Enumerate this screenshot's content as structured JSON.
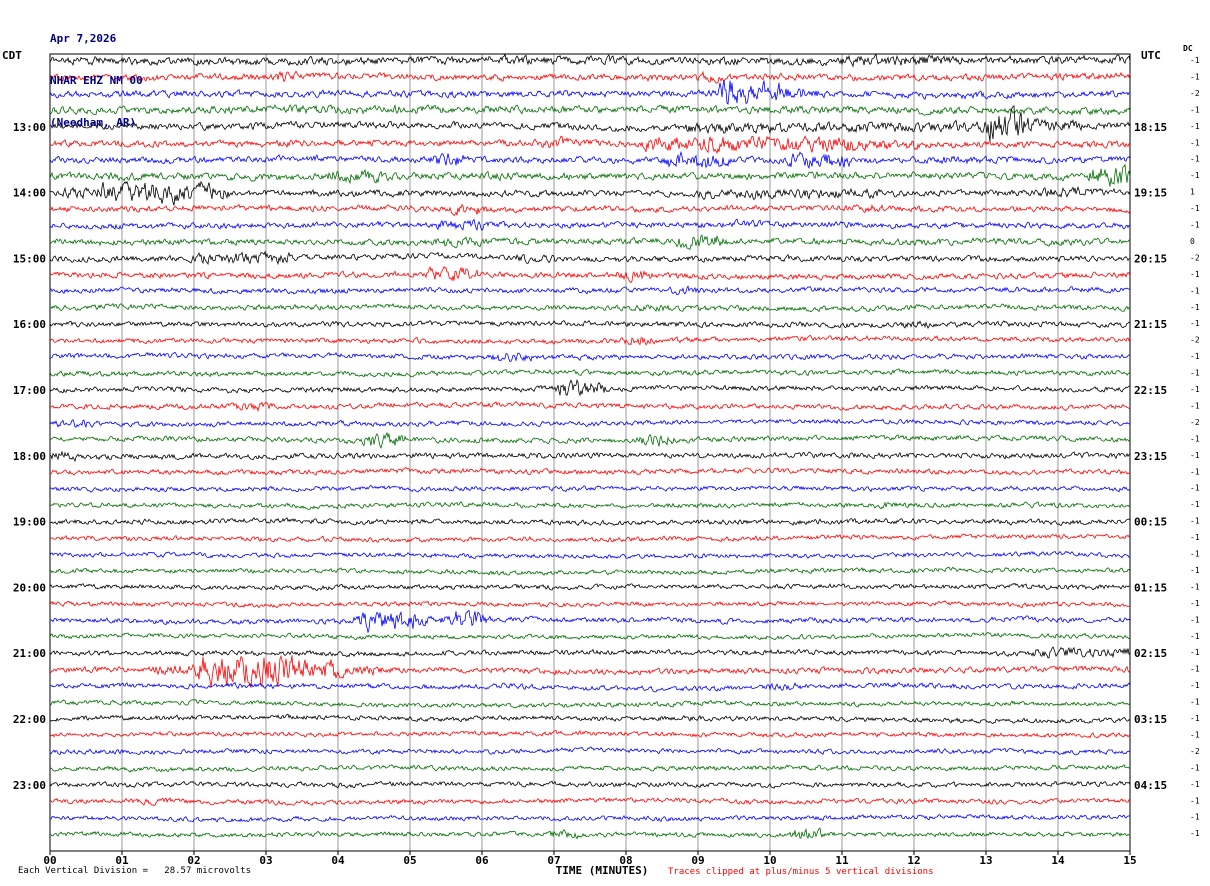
{
  "header": {
    "date": "Apr 7,2026",
    "station": "NHAR EHZ NM 00",
    "location": "(Needham, AR)"
  },
  "axes": {
    "left_timezone": "CDT",
    "right_timezone": "UTC",
    "dc_label": "DC",
    "x_title": "TIME (MINUTES)",
    "minute_labels": [
      "00",
      "01",
      "02",
      "03",
      "04",
      "05",
      "06",
      "07",
      "08",
      "09",
      "10",
      "11",
      "12",
      "13",
      "14",
      "15"
    ]
  },
  "footer": {
    "scale_note": "Each Vertical Division =   28.57 microvolts",
    "clip_note": "Traces clipped at plus/minus 5 vertical divisions"
  },
  "colors": {
    "trace_cycle": [
      "#000000",
      "#ff0000",
      "#0000ff",
      "#006e00"
    ],
    "grid": "#9a9a9a",
    "title": "#000080",
    "clip_note_color": "#ff0000"
  },
  "chart_data": {
    "type": "line",
    "subtype": "seismogram-helicorder",
    "x_range_minutes": [
      0,
      15
    ],
    "minutes_per_row": 15,
    "clip_divisions": 5,
    "microvolts_per_division": 28.57,
    "row_color_cycle": [
      "black",
      "red",
      "blue",
      "green"
    ],
    "rows": [
      {
        "left": "",
        "right": "",
        "dc": -1,
        "amp": 3.2,
        "events": [
          [
            11.0,
            12.5,
            4.5
          ],
          [
            6.3,
            6.6,
            4
          ]
        ]
      },
      {
        "left": "",
        "right": "",
        "dc": -1,
        "amp": 2.6,
        "events": [
          [
            3.1,
            3.4,
            4
          ],
          [
            9.0,
            9.3,
            4
          ]
        ]
      },
      {
        "left": "",
        "right": "",
        "dc": -2,
        "amp": 2.6,
        "events": [
          [
            9.35,
            9.6,
            13
          ],
          [
            9.9,
            10.15,
            9
          ],
          [
            10.4,
            10.6,
            5
          ]
        ]
      },
      {
        "left": "",
        "right": "",
        "dc": -1,
        "amp": 2.8,
        "events": [
          [
            2.5,
            5.5,
            3.5
          ]
        ]
      },
      {
        "left": "13:00",
        "right": "18:15",
        "dc": -1,
        "amp": 2.6,
        "events": [
          [
            8.8,
            12.9,
            4.2
          ],
          [
            13.05,
            13.5,
            12
          ],
          [
            13.5,
            14.2,
            5
          ]
        ]
      },
      {
        "left": "",
        "right": "",
        "dc": -1,
        "amp": 2.6,
        "events": [
          [
            6.8,
            7.1,
            4.5
          ],
          [
            8.3,
            11.2,
            6.5
          ],
          [
            11.2,
            12.0,
            4
          ]
        ]
      },
      {
        "left": "",
        "right": "",
        "dc": -1,
        "amp": 2.5,
        "events": [
          [
            5.3,
            5.65,
            6
          ],
          [
            8.6,
            9.3,
            6.5
          ],
          [
            10.3,
            11.0,
            6.5
          ],
          [
            12.4,
            12.7,
            4
          ]
        ]
      },
      {
        "left": "",
        "right": "",
        "dc": -1,
        "amp": 2.8,
        "events": [
          [
            3.9,
            4.6,
            5
          ],
          [
            6.0,
            6.4,
            4
          ],
          [
            14.5,
            15,
            9
          ]
        ]
      },
      {
        "left": "14:00",
        "right": "19:15",
        "dc": 1,
        "amp": 2.5,
        "events": [
          [
            0.2,
            0.7,
            4
          ],
          [
            0.7,
            2.3,
            8.5
          ],
          [
            9.0,
            11.5,
            3.8
          ],
          [
            13.8,
            14.4,
            4
          ]
        ]
      },
      {
        "left": "",
        "right": "",
        "dc": -1,
        "amp": 2.3,
        "events": [
          [
            5.6,
            5.95,
            4.5
          ],
          [
            11.3,
            11.6,
            3.5
          ]
        ]
      },
      {
        "left": "",
        "right": "",
        "dc": -1,
        "amp": 2.3,
        "events": [
          [
            5.4,
            6.0,
            4
          ],
          [
            9.5,
            9.8,
            3.5
          ]
        ]
      },
      {
        "left": "",
        "right": "",
        "dc": 0,
        "amp": 2.5,
        "events": [
          [
            5.4,
            6.2,
            4
          ],
          [
            8.75,
            9.25,
            6
          ]
        ]
      },
      {
        "left": "15:00",
        "right": "20:15",
        "dc": -2,
        "amp": 2.3,
        "events": [
          [
            2.0,
            3.3,
            4.5
          ],
          [
            6.5,
            7.0,
            3.5
          ]
        ]
      },
      {
        "left": "",
        "right": "",
        "dc": -1,
        "amp": 2.3,
        "events": [
          [
            5.3,
            5.8,
            6
          ],
          [
            7.9,
            8.25,
            4.5
          ]
        ]
      },
      {
        "left": "",
        "right": "",
        "dc": -1,
        "amp": 2.1,
        "events": [
          [
            8.6,
            9.0,
            3.2
          ]
        ]
      },
      {
        "left": "",
        "right": "",
        "dc": -1,
        "amp": 2.1,
        "events": [
          [
            8.2,
            8.6,
            3
          ]
        ]
      },
      {
        "left": "16:00",
        "right": "21:15",
        "dc": -1,
        "amp": 2.1,
        "events": [
          [
            11.8,
            12.15,
            3.5
          ]
        ]
      },
      {
        "left": "",
        "right": "",
        "dc": -2,
        "amp": 2.0,
        "events": [
          [
            8.0,
            8.3,
            4.5
          ]
        ]
      },
      {
        "left": "",
        "right": "",
        "dc": -1,
        "amp": 2.0,
        "events": [
          [
            6.2,
            6.6,
            4
          ]
        ]
      },
      {
        "left": "",
        "right": "",
        "dc": -1,
        "amp": 2.0,
        "events": []
      },
      {
        "left": "17:00",
        "right": "22:15",
        "dc": -1,
        "amp": 2.0,
        "events": [
          [
            7.1,
            7.55,
            7.5
          ]
        ]
      },
      {
        "left": "",
        "right": "",
        "dc": -1,
        "amp": 2.0,
        "events": [
          [
            2.6,
            2.95,
            4
          ]
        ]
      },
      {
        "left": "",
        "right": "",
        "dc": -2,
        "amp": 1.9,
        "events": [
          [
            0.15,
            0.5,
            4
          ]
        ]
      },
      {
        "left": "",
        "right": "",
        "dc": -1,
        "amp": 2.0,
        "events": [
          [
            4.4,
            4.8,
            5.5
          ],
          [
            8.2,
            8.55,
            5
          ]
        ]
      },
      {
        "left": "18:00",
        "right": "23:15",
        "dc": -1,
        "amp": 2.2,
        "events": [
          [
            0,
            0.3,
            4.5
          ]
        ]
      },
      {
        "left": "",
        "right": "",
        "dc": -1,
        "amp": 2.0,
        "events": []
      },
      {
        "left": "",
        "right": "",
        "dc": -1,
        "amp": 1.8,
        "events": []
      },
      {
        "left": "",
        "right": "",
        "dc": -1,
        "amp": 1.9,
        "events": [
          [
            11.5,
            11.85,
            3
          ]
        ]
      },
      {
        "left": "19:00",
        "right": "00:15",
        "dc": -1,
        "amp": 2.0,
        "events": []
      },
      {
        "left": "",
        "right": "",
        "dc": -1,
        "amp": 1.8,
        "events": []
      },
      {
        "left": "",
        "right": "",
        "dc": -1,
        "amp": 1.8,
        "events": []
      },
      {
        "left": "",
        "right": "",
        "dc": -1,
        "amp": 1.8,
        "events": []
      },
      {
        "left": "20:00",
        "right": "01:15",
        "dc": -1,
        "amp": 1.9,
        "events": []
      },
      {
        "left": "",
        "right": "",
        "dc": -1,
        "amp": 1.8,
        "events": []
      },
      {
        "left": "",
        "right": "",
        "dc": -1,
        "amp": 2.0,
        "events": [
          [
            4.3,
            5.05,
            8
          ],
          [
            5.5,
            5.95,
            7
          ]
        ]
      },
      {
        "left": "",
        "right": "",
        "dc": -1,
        "amp": 1.8,
        "events": []
      },
      {
        "left": "21:00",
        "right": "02:15",
        "dc": -1,
        "amp": 2.0,
        "events": [
          [
            13.7,
            15,
            4.2
          ]
        ]
      },
      {
        "left": "",
        "right": "",
        "dc": -1,
        "amp": 2.3,
        "events": [
          [
            1.5,
            2.1,
            5
          ],
          [
            2.1,
            3.35,
            13
          ],
          [
            3.35,
            3.95,
            9
          ],
          [
            3.95,
            4.6,
            4
          ]
        ]
      },
      {
        "left": "",
        "right": "",
        "dc": -1,
        "amp": 2.0,
        "events": [
          [
            10.0,
            10.4,
            3.2
          ]
        ]
      },
      {
        "left": "",
        "right": "",
        "dc": -1,
        "amp": 1.8,
        "events": []
      },
      {
        "left": "22:00",
        "right": "03:15",
        "dc": -1,
        "amp": 1.9,
        "events": []
      },
      {
        "left": "",
        "right": "",
        "dc": -1,
        "amp": 1.8,
        "events": []
      },
      {
        "left": "",
        "right": "",
        "dc": -2,
        "amp": 1.8,
        "events": []
      },
      {
        "left": "",
        "right": "",
        "dc": -1,
        "amp": 1.8,
        "events": []
      },
      {
        "left": "23:00",
        "right": "04:15",
        "dc": -1,
        "amp": 1.9,
        "events": []
      },
      {
        "left": "",
        "right": "",
        "dc": -1,
        "amp": 1.9,
        "events": [
          [
            1.3,
            1.6,
            3
          ]
        ]
      },
      {
        "left": "",
        "right": "",
        "dc": -1,
        "amp": 1.8,
        "events": []
      },
      {
        "left": "",
        "right": "",
        "dc": -1,
        "amp": 1.8,
        "events": [
          [
            7.0,
            7.35,
            3.5
          ],
          [
            10.3,
            10.65,
            4.5
          ]
        ]
      }
    ]
  }
}
